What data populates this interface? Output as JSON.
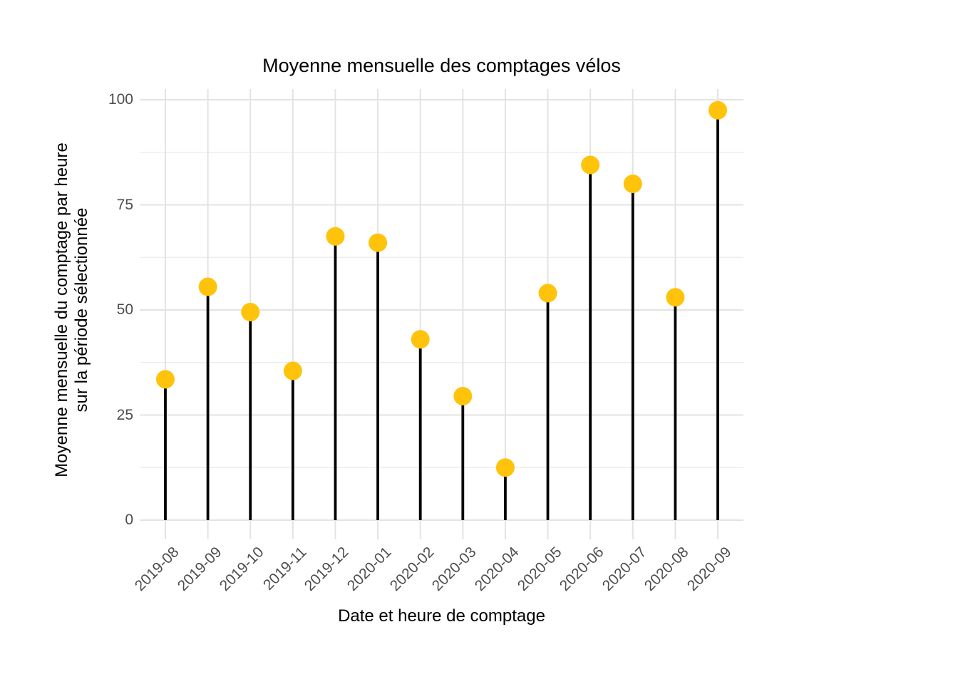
{
  "chart_data": {
    "type": "scatter",
    "variant": "lollipop",
    "title": "Moyenne mensuelle des comptages vélos",
    "xlabel": "Date et heure de comptage",
    "ylabel_lines": [
      "Moyenne mensuelle du comptage par heure",
      "sur la période sélectionnée"
    ],
    "categories": [
      "2019-08",
      "2019-09",
      "2019-10",
      "2019-11",
      "2019-12",
      "2020-01",
      "2020-02",
      "2020-03",
      "2020-04",
      "2020-05",
      "2020-06",
      "2020-07",
      "2020-08",
      "2020-09"
    ],
    "values": [
      33.5,
      55.5,
      49.5,
      35.5,
      67.5,
      66,
      43,
      29.5,
      12.5,
      54,
      84.5,
      80,
      53,
      97.5
    ],
    "yticks": [
      0,
      25,
      50,
      75,
      100
    ],
    "minor_yticks": [
      12.5,
      37.5,
      62.5,
      87.5
    ],
    "ylim": [
      0,
      100
    ],
    "grid": "on",
    "legend": "none",
    "colors": {
      "point": "#FFC30B",
      "stem": "#000000",
      "grid_major": "#e3e3e3",
      "grid_minor": "#eeeeee",
      "tick_text": "#4d4d4d",
      "title_text": "#000000",
      "background": "#ffffff"
    }
  }
}
